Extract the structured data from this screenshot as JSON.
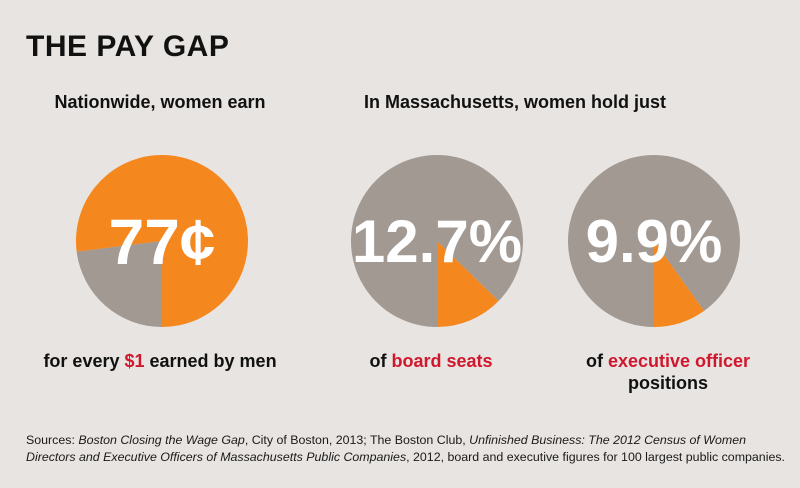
{
  "title": "THE PAY GAP",
  "subheads": {
    "left": "Nationwide, women earn",
    "right": "In Massachusetts, women hold just"
  },
  "colors": {
    "orange": "#f5871f",
    "gray": "#a19992",
    "highlight": "#d1172e",
    "background": "#e7e4e1"
  },
  "chart_data": [
    {
      "type": "pie",
      "label": "77¢",
      "slices": [
        {
          "value": 77,
          "color": "#f5871f"
        },
        {
          "value": 23,
          "color": "#a19992"
        }
      ]
    },
    {
      "type": "pie",
      "label": "12.7%",
      "slices": [
        {
          "value": 12.7,
          "color": "#f5871f"
        },
        {
          "value": 87.3,
          "color": "#a19992"
        }
      ]
    },
    {
      "type": "pie",
      "label": "9.9%",
      "slices": [
        {
          "value": 9.9,
          "color": "#f5871f"
        },
        {
          "value": 90.1,
          "color": "#a19992"
        }
      ]
    }
  ],
  "captions": {
    "c1_pre": "for every ",
    "c1_hl": "$1",
    "c1_post": " earned by men",
    "c2_pre": "of ",
    "c2_hl": "board seats",
    "c3_pre": "of ",
    "c3_hl": "executive officer",
    "c3_post": "positions"
  },
  "sources": {
    "prefix": "Sources: ",
    "s1_title": "Boston Closing the Wage Gap",
    "s1_rest": ", City of Boston, 2013; The Boston Club, ",
    "s2_title": "Unfinished Business: The 2012 Census of Women Directors and Executive Officers of Massachusetts Public Companies",
    "s2_rest": ", 2012, board and executive figures for 100 largest public companies."
  }
}
